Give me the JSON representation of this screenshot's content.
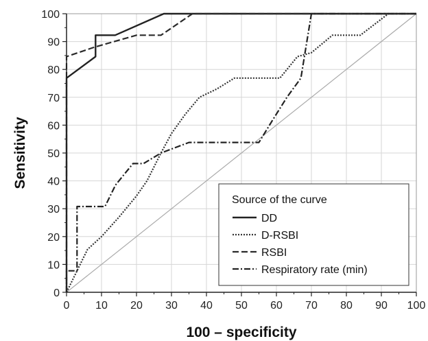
{
  "chart_data": {
    "type": "line",
    "xlabel": "100 – specificity",
    "ylabel": "Sensitivity",
    "xlim": [
      0,
      100
    ],
    "ylim": [
      0,
      100
    ],
    "xticks": [
      0,
      10,
      20,
      30,
      40,
      50,
      60,
      70,
      80,
      90,
      100
    ],
    "yticks": [
      0,
      10,
      20,
      30,
      40,
      50,
      60,
      70,
      80,
      90,
      100
    ],
    "grid": true,
    "legend": {
      "title": "Source of the curve",
      "placement": "bottom-right"
    },
    "reference_line": {
      "x": [
        0,
        100
      ],
      "y": [
        0,
        100
      ],
      "color": "#aaaaaa"
    },
    "series": [
      {
        "name": "DD",
        "style": "solid",
        "color": "#222222",
        "x": [
          0,
          0,
          8.3,
          8.3,
          13.9,
          27.8,
          100
        ],
        "y": [
          0,
          76.9,
          84.6,
          92.3,
          92.3,
          100,
          100
        ]
      },
      {
        "name": "D-RSBI",
        "style": "dotted",
        "color": "#333333",
        "x": [
          0,
          3,
          6,
          10,
          15,
          20,
          23,
          27,
          30,
          34,
          38,
          43,
          48,
          52,
          61,
          66,
          70,
          76,
          84,
          92,
          100
        ],
        "y": [
          0,
          7.7,
          15.4,
          20,
          27,
          34.6,
          40,
          50,
          57,
          64,
          70,
          73,
          76.9,
          76.9,
          76.9,
          84.6,
          86,
          92.3,
          92.3,
          100,
          100
        ]
      },
      {
        "name": "RSBI",
        "style": "dashed",
        "color": "#2a2a2a",
        "x": [
          0,
          0,
          8,
          20,
          27,
          36,
          100
        ],
        "y": [
          0,
          84.6,
          88,
          92.3,
          92.3,
          100,
          100
        ]
      },
      {
        "name": "Respiratory rate (min)",
        "style": "dashdot",
        "color": "#222222",
        "x": [
          0,
          0,
          3,
          3,
          11,
          14,
          19,
          22,
          27,
          35,
          55,
          59,
          63,
          67,
          68,
          70,
          100
        ],
        "y": [
          0,
          7.7,
          7.7,
          30.8,
          30.8,
          38.5,
          46.2,
          46.2,
          50,
          53.8,
          53.8,
          62,
          70,
          76.9,
          84.6,
          100,
          100
        ]
      }
    ]
  }
}
